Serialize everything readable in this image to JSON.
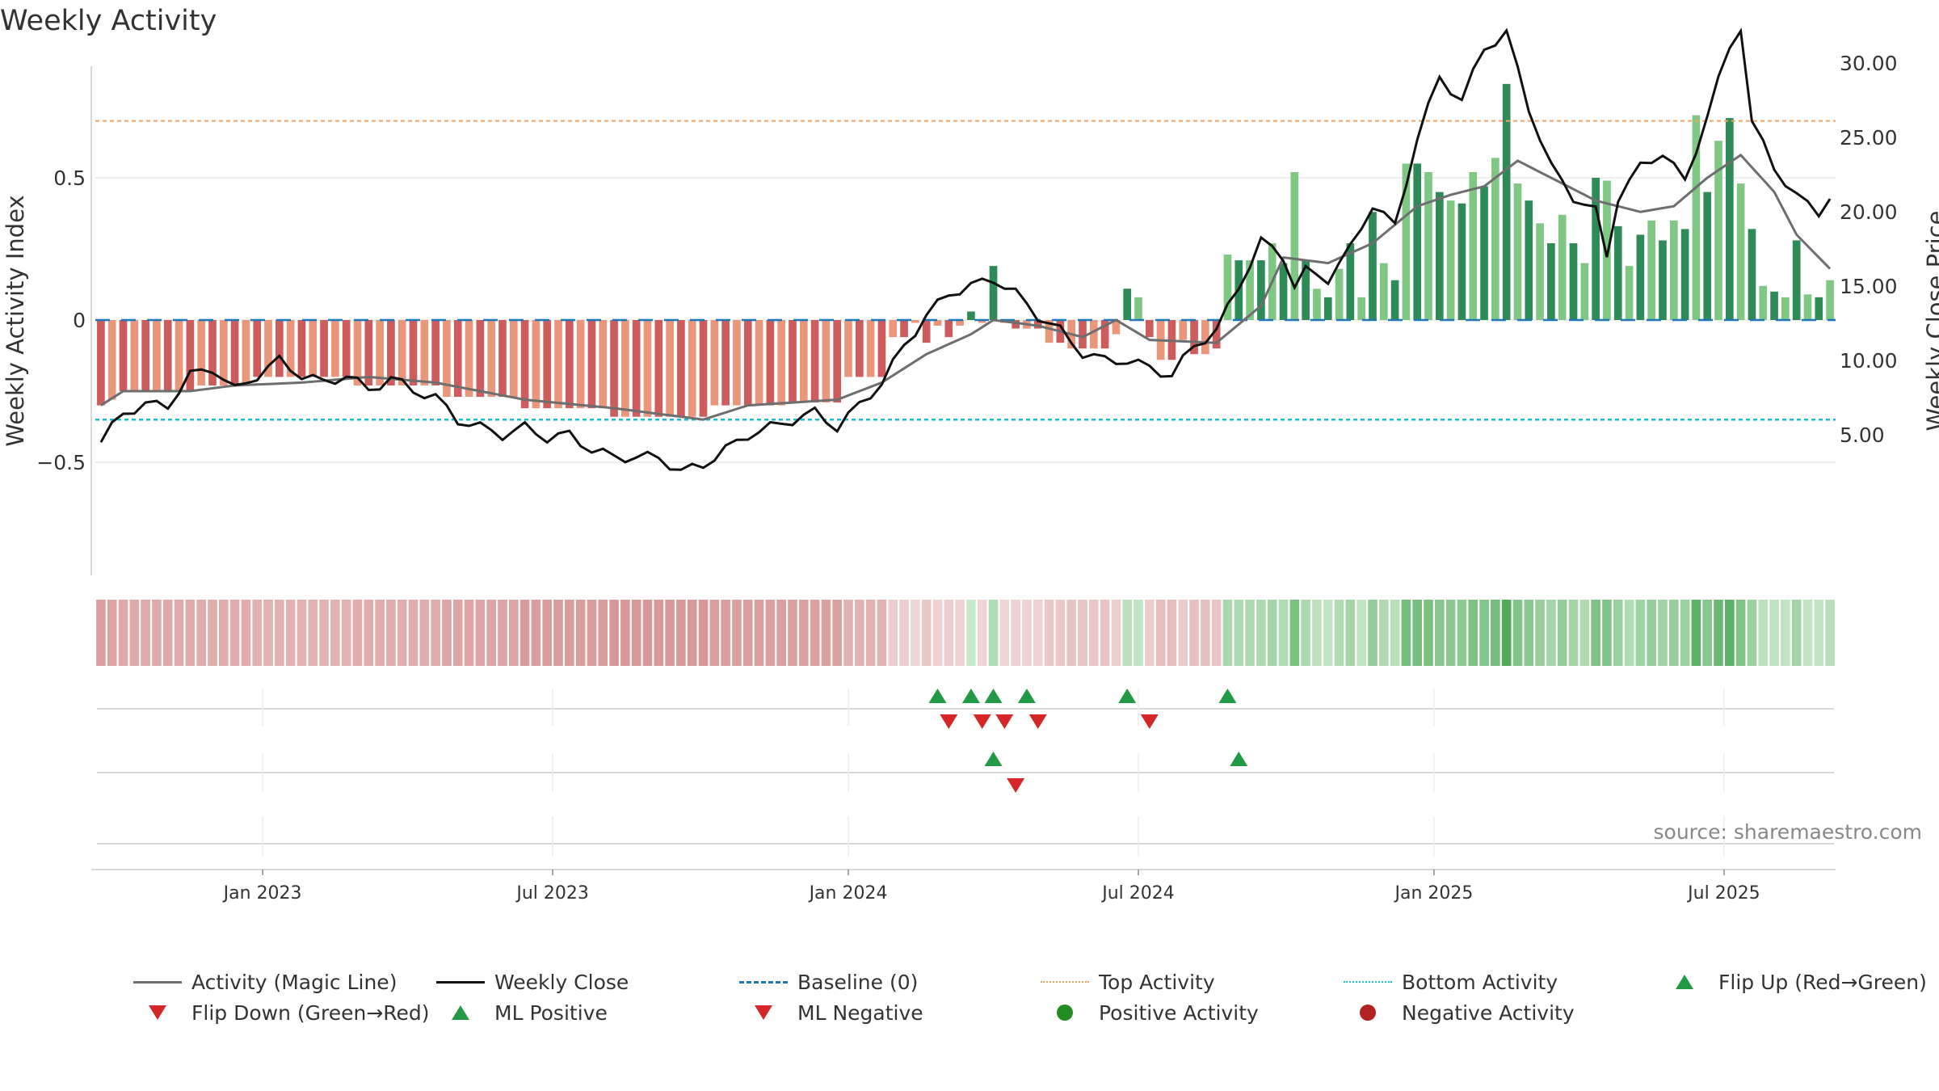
{
  "title": "Weekly Activity",
  "source": "source: sharemaestro.com",
  "colors": {
    "posDark": "#2e8b57",
    "posLight": "#81c784",
    "negDark": "#cd5c5c",
    "negLight": "#e9967a",
    "magic": "#6e6e6e",
    "close": "#111111",
    "baseline": "#1f77b4",
    "top": "#f4a460",
    "bottom": "#17becf",
    "flipUp": "#229944",
    "flipDown": "#d62728",
    "posDot": "#228b22",
    "negDot": "#b22222"
  },
  "chart_data": {
    "type": "bar+line",
    "title": "Weekly Activity",
    "ylabel_left": "Weekly Activity Index",
    "ylabel_right": "Weekly Close Price",
    "left_ticks": [
      {
        "v": 0.5,
        "label": "0.5"
      },
      {
        "v": 0,
        "label": "0"
      },
      {
        "v": -0.5,
        "label": "−0.5"
      }
    ],
    "right_ticks": [
      {
        "v": 30,
        "label": "30.00"
      },
      {
        "v": 25,
        "label": "25.00"
      },
      {
        "v": 20,
        "label": "20.00"
      },
      {
        "v": 15,
        "label": "15.00"
      },
      {
        "v": 10,
        "label": "10.00"
      },
      {
        "v": 5,
        "label": "5.00"
      }
    ],
    "x_ticks": [
      {
        "week": 14.5,
        "label": "Jan 2023"
      },
      {
        "week": 40.5,
        "label": "Jul 2023"
      },
      {
        "week": 67,
        "label": "Jan 2024"
      },
      {
        "week": 93,
        "label": "Jul 2024"
      },
      {
        "week": 119.5,
        "label": "Jan 2025"
      },
      {
        "week": 145.5,
        "label": "Jul 2025"
      }
    ],
    "top_activity": 0.7,
    "bottom_activity": -0.35,
    "baseline": 0,
    "activity_key": [
      {
        "from": 0,
        "to": 0,
        "v": -0.3
      },
      {
        "from": 1,
        "to": 1,
        "v": -0.28
      },
      {
        "from": 2,
        "to": 8,
        "v": -0.25
      },
      {
        "from": 9,
        "to": 13,
        "v": -0.23
      },
      {
        "from": 14,
        "to": 22,
        "v": -0.2
      },
      {
        "from": 23,
        "to": 30,
        "v": -0.23
      },
      {
        "from": 31,
        "to": 37,
        "v": -0.27
      },
      {
        "from": 38,
        "to": 45,
        "v": -0.31
      },
      {
        "from": 46,
        "to": 54,
        "v": -0.34
      },
      {
        "from": 55,
        "to": 61,
        "v": -0.3
      },
      {
        "from": 62,
        "to": 66,
        "v": -0.29
      },
      {
        "from": 67,
        "to": 70,
        "v": -0.2
      },
      {
        "from": 71,
        "to": 72,
        "v": -0.06
      },
      {
        "from": 73,
        "to": 73,
        "v": -0.01
      },
      {
        "from": 74,
        "to": 74,
        "v": -0.08
      },
      {
        "from": 75,
        "to": 75,
        "v": -0.02
      },
      {
        "from": 76,
        "to": 76,
        "v": -0.06
      },
      {
        "from": 77,
        "to": 77,
        "v": -0.02
      },
      {
        "from": 78,
        "to": 78,
        "v": 0.03
      },
      {
        "from": 79,
        "to": 79,
        "v": -0.01
      },
      {
        "from": 80,
        "to": 80,
        "v": 0.19
      },
      {
        "from": 81,
        "to": 81,
        "v": -0.01
      },
      {
        "from": 82,
        "to": 84,
        "v": -0.03
      },
      {
        "from": 85,
        "to": 86,
        "v": -0.08
      },
      {
        "from": 87,
        "to": 90,
        "v": -0.1
      },
      {
        "from": 91,
        "to": 91,
        "v": -0.05
      },
      {
        "from": 92,
        "to": 92,
        "v": 0.11
      },
      {
        "from": 93,
        "to": 93,
        "v": 0.08
      },
      {
        "from": 94,
        "to": 94,
        "v": -0.06
      },
      {
        "from": 95,
        "to": 96,
        "v": -0.14
      },
      {
        "from": 97,
        "to": 97,
        "v": -0.07
      },
      {
        "from": 98,
        "to": 99,
        "v": -0.12
      },
      {
        "from": 100,
        "to": 100,
        "v": -0.1
      },
      {
        "from": 101,
        "to": 101,
        "v": 0.23
      },
      {
        "from": 102,
        "to": 104,
        "v": 0.21
      },
      {
        "from": 105,
        "to": 105,
        "v": 0.27
      },
      {
        "from": 106,
        "to": 106,
        "v": 0.2
      },
      {
        "from": 107,
        "to": 107,
        "v": 0.52
      },
      {
        "from": 108,
        "to": 108,
        "v": 0.21
      },
      {
        "from": 109,
        "to": 109,
        "v": 0.11
      },
      {
        "from": 110,
        "to": 110,
        "v": 0.08
      },
      {
        "from": 111,
        "to": 111,
        "v": 0.18
      },
      {
        "from": 112,
        "to": 112,
        "v": 0.27
      },
      {
        "from": 113,
        "to": 113,
        "v": 0.08
      },
      {
        "from": 114,
        "to": 114,
        "v": 0.38
      },
      {
        "from": 115,
        "to": 115,
        "v": 0.2
      },
      {
        "from": 116,
        "to": 116,
        "v": 0.14
      },
      {
        "from": 117,
        "to": 118,
        "v": 0.55
      },
      {
        "from": 119,
        "to": 119,
        "v": 0.52
      },
      {
        "from": 120,
        "to": 120,
        "v": 0.45
      },
      {
        "from": 121,
        "to": 121,
        "v": 0.42
      },
      {
        "from": 122,
        "to": 122,
        "v": 0.41
      },
      {
        "from": 123,
        "to": 123,
        "v": 0.52
      },
      {
        "from": 124,
        "to": 124,
        "v": 0.47
      },
      {
        "from": 125,
        "to": 125,
        "v": 0.57
      },
      {
        "from": 126,
        "to": 126,
        "v": 0.83
      },
      {
        "from": 127,
        "to": 127,
        "v": 0.48
      },
      {
        "from": 128,
        "to": 128,
        "v": 0.42
      },
      {
        "from": 129,
        "to": 129,
        "v": 0.34
      },
      {
        "from": 130,
        "to": 130,
        "v": 0.27
      },
      {
        "from": 131,
        "to": 131,
        "v": 0.37
      },
      {
        "from": 132,
        "to": 132,
        "v": 0.27
      },
      {
        "from": 133,
        "to": 133,
        "v": 0.2
      },
      {
        "from": 134,
        "to": 134,
        "v": 0.5
      },
      {
        "from": 135,
        "to": 135,
        "v": 0.49
      },
      {
        "from": 136,
        "to": 136,
        "v": 0.33
      },
      {
        "from": 137,
        "to": 137,
        "v": 0.19
      },
      {
        "from": 138,
        "to": 138,
        "v": 0.3
      },
      {
        "from": 139,
        "to": 139,
        "v": 0.35
      },
      {
        "from": 140,
        "to": 140,
        "v": 0.28
      },
      {
        "from": 141,
        "to": 141,
        "v": 0.35
      },
      {
        "from": 142,
        "to": 142,
        "v": 0.32
      },
      {
        "from": 143,
        "to": 143,
        "v": 0.72
      },
      {
        "from": 144,
        "to": 144,
        "v": 0.45
      },
      {
        "from": 145,
        "to": 145,
        "v": 0.63
      },
      {
        "from": 146,
        "to": 146,
        "v": 0.71
      },
      {
        "from": 147,
        "to": 147,
        "v": 0.48
      },
      {
        "from": 148,
        "to": 148,
        "v": 0.32
      },
      {
        "from": 149,
        "to": 149,
        "v": 0.12
      },
      {
        "from": 150,
        "to": 150,
        "v": 0.1
      },
      {
        "from": 151,
        "to": 151,
        "v": 0.08
      },
      {
        "from": 152,
        "to": 152,
        "v": 0.28
      },
      {
        "from": 153,
        "to": 153,
        "v": 0.09
      },
      {
        "from": 154,
        "to": 154,
        "v": 0.08
      },
      {
        "from": 155,
        "to": 155,
        "v": 0.14
      }
    ],
    "weeks": 156,
    "magic_line_key": [
      [
        0,
        -0.3
      ],
      [
        2,
        -0.25
      ],
      [
        8,
        -0.25
      ],
      [
        12,
        -0.23
      ],
      [
        18,
        -0.22
      ],
      [
        24,
        -0.2
      ],
      [
        30,
        -0.22
      ],
      [
        38,
        -0.28
      ],
      [
        46,
        -0.31
      ],
      [
        54,
        -0.35
      ],
      [
        58,
        -0.3
      ],
      [
        66,
        -0.28
      ],
      [
        70,
        -0.22
      ],
      [
        74,
        -0.12
      ],
      [
        78,
        -0.05
      ],
      [
        80,
        0
      ],
      [
        84,
        -0.02
      ],
      [
        88,
        -0.06
      ],
      [
        91,
        0
      ],
      [
        94,
        -0.07
      ],
      [
        100,
        -0.08
      ],
      [
        104,
        0.05
      ],
      [
        106,
        0.22
      ],
      [
        110,
        0.2
      ],
      [
        114,
        0.27
      ],
      [
        118,
        0.4
      ],
      [
        121,
        0.44
      ],
      [
        124,
        0.47
      ],
      [
        127,
        0.56
      ],
      [
        130,
        0.5
      ],
      [
        134,
        0.42
      ],
      [
        138,
        0.38
      ],
      [
        141,
        0.4
      ],
      [
        144,
        0.5
      ],
      [
        147,
        0.58
      ],
      [
        150,
        0.45
      ],
      [
        152,
        0.3
      ],
      [
        155,
        0.18
      ]
    ],
    "weekly_close_key": [
      [
        0,
        4.5
      ],
      [
        1,
        5.5
      ],
      [
        2,
        6.5
      ],
      [
        4,
        7
      ],
      [
        6,
        7
      ],
      [
        8,
        9
      ],
      [
        10,
        9.5
      ],
      [
        12,
        8
      ],
      [
        14,
        9
      ],
      [
        16,
        10
      ],
      [
        18,
        9
      ],
      [
        20,
        8.5
      ],
      [
        22,
        9
      ],
      [
        24,
        8
      ],
      [
        26,
        8.8
      ],
      [
        28,
        8
      ],
      [
        30,
        7.5
      ],
      [
        32,
        6
      ],
      [
        34,
        5.5
      ],
      [
        36,
        5
      ],
      [
        38,
        5.5
      ],
      [
        40,
        4.8
      ],
      [
        42,
        5
      ],
      [
        44,
        4
      ],
      [
        46,
        3.5
      ],
      [
        48,
        3.5
      ],
      [
        50,
        3.5
      ],
      [
        52,
        2.5
      ],
      [
        54,
        3
      ],
      [
        56,
        4
      ],
      [
        58,
        5
      ],
      [
        60,
        5.5
      ],
      [
        62,
        6
      ],
      [
        64,
        6.5
      ],
      [
        66,
        5.5
      ],
      [
        68,
        7
      ],
      [
        70,
        8.5
      ],
      [
        72,
        11
      ],
      [
        74,
        13
      ],
      [
        76,
        14.5
      ],
      [
        78,
        15
      ],
      [
        80,
        15.5
      ],
      [
        82,
        14.5
      ],
      [
        84,
        13
      ],
      [
        86,
        12
      ],
      [
        88,
        10.5
      ],
      [
        90,
        10
      ],
      [
        92,
        10
      ],
      [
        94,
        9.5
      ],
      [
        96,
        9
      ],
      [
        98,
        11
      ],
      [
        100,
        12
      ],
      [
        102,
        15
      ],
      [
        104,
        18
      ],
      [
        106,
        17
      ],
      [
        107,
        15
      ],
      [
        108,
        16
      ],
      [
        110,
        15.5
      ],
      [
        112,
        17.5
      ],
      [
        114,
        20.5
      ],
      [
        116,
        19
      ],
      [
        118,
        25
      ],
      [
        120,
        29
      ],
      [
        122,
        27.5
      ],
      [
        124,
        31
      ],
      [
        126,
        32
      ],
      [
        128,
        27
      ],
      [
        130,
        23
      ],
      [
        132,
        21
      ],
      [
        134,
        20
      ],
      [
        135,
        17
      ],
      [
        136,
        21
      ],
      [
        138,
        23
      ],
      [
        140,
        24
      ],
      [
        142,
        22
      ],
      [
        144,
        26.5
      ],
      [
        146,
        31
      ],
      [
        147,
        32.5
      ],
      [
        148,
        26
      ],
      [
        150,
        23
      ],
      [
        152,
        21
      ],
      [
        154,
        20
      ],
      [
        155,
        21
      ]
    ],
    "heat_strip_note": "colored per week by activity value",
    "flip_up_weeks": [
      75,
      78,
      80,
      83,
      92,
      101
    ],
    "flip_down_weeks": [
      76,
      79,
      81,
      84,
      94
    ],
    "ml_positive_weeks": [
      80,
      102
    ],
    "ml_negative_weeks": [
      82
    ]
  },
  "legend": [
    {
      "key": "magic",
      "label": "Activity (Magic Line)",
      "type": "line"
    },
    {
      "key": "close",
      "label": "Weekly Close",
      "type": "line"
    },
    {
      "key": "baseline",
      "label": "Baseline (0)",
      "type": "dash"
    },
    {
      "key": "top",
      "label": "Top Activity",
      "type": "dot"
    },
    {
      "key": "bottom",
      "label": "Bottom Activity",
      "type": "dot"
    },
    {
      "key": "flipUp",
      "label": "Flip Up (Red→Green)",
      "type": "up"
    },
    {
      "key": "flipDown",
      "label": "Flip Down (Green→Red)",
      "type": "down"
    },
    {
      "key": "flipUp",
      "label": "ML Positive",
      "type": "up"
    },
    {
      "key": "flipDown",
      "label": "ML Negative",
      "type": "down"
    },
    {
      "key": "posDot",
      "label": "Positive Activity",
      "type": "circle"
    },
    {
      "key": "negDot",
      "label": "Negative Activity",
      "type": "circle"
    }
  ]
}
